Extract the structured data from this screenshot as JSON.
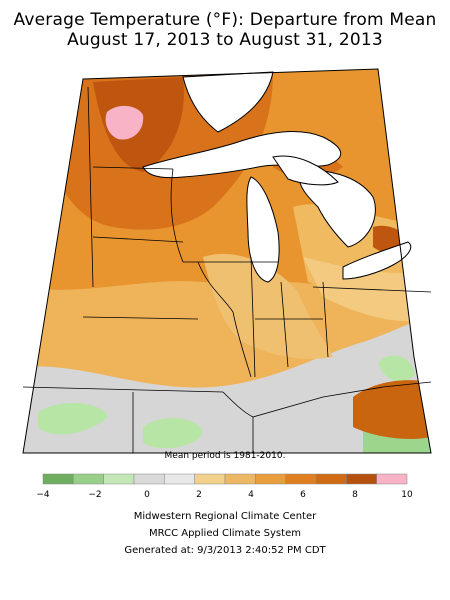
{
  "title": {
    "line1": "Average Temperature (°F): Departure from Mean",
    "line2": "August 17, 2013 to August 31, 2013"
  },
  "map": {
    "mean_period_note": "Mean period is 1981-2010.",
    "region_colors": {
      "minus_1_to_1": "#d9d9d9",
      "1_to_2": "#aee6a0",
      "2_to_3": "#8ccf7e",
      "0_to_1_warm": "#f3c97f",
      "3_to_4": "#e9b15a",
      "5_to_6": "#e89530",
      "6_to_7": "#d87018",
      "8_to_9": "#bf5610",
      "9_to_10": "#f9b3c6"
    }
  },
  "legend": {
    "colors": [
      "#6fae5f",
      "#98cf89",
      "#c3e8b6",
      "#d9d9d9",
      "#e8e8e8",
      "#f2d18a",
      "#ecb863",
      "#e89e3e",
      "#df7f1f",
      "#d06a14",
      "#b5500f",
      "#f9b3c6"
    ],
    "tick_labels": [
      "−4",
      "−2",
      "0",
      "2",
      "4",
      "6",
      "8",
      "10"
    ]
  },
  "footer": {
    "line1": "Midwestern Regional Climate Center",
    "line2": "MRCC Applied Climate System",
    "line3": "Generated at: 9/3/2013 2:40:52 PM CDT"
  }
}
